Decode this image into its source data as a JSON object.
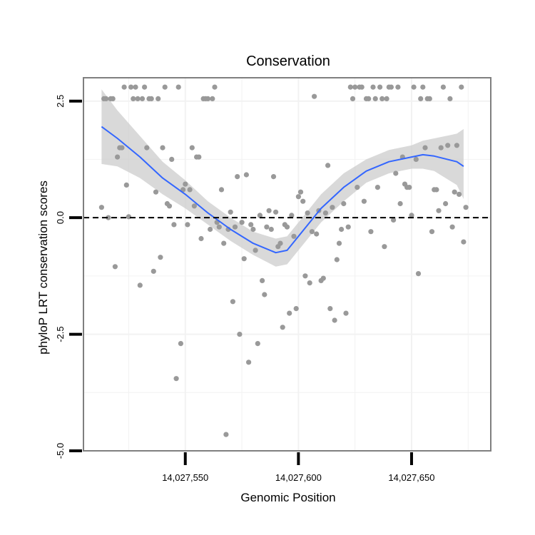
{
  "chart_data": {
    "type": "scatter",
    "title": "Conservation",
    "xlabel": "Genomic Position",
    "ylabel": "phyloP LRT conservation scores",
    "xlim": [
      14027505,
      14027685
    ],
    "ylim": [
      -5.0,
      3.0
    ],
    "x_ticks": [
      {
        "value": 14027550,
        "label": "14,027,550"
      },
      {
        "value": 14027600,
        "label": "14,027,600"
      },
      {
        "value": 14027650,
        "label": "14,027,650"
      }
    ],
    "y_ticks": [
      {
        "value": -5.0,
        "label": "-5.0"
      },
      {
        "value": -2.5,
        "label": "-2.5"
      },
      {
        "value": 0.0,
        "label": "0.0"
      },
      {
        "value": 2.5,
        "label": "2.5"
      }
    ],
    "grid": true,
    "reference_line": {
      "y": 0,
      "style": "dashed"
    },
    "colors": {
      "points": "#999999",
      "smooth": "#3366ff",
      "ribbon": "#cccccc",
      "panel_border": "#7f7f7f",
      "grid": "#f2f2f2"
    },
    "points": [
      {
        "x": 14027513,
        "y": 0.22
      },
      {
        "x": 14027514,
        "y": 2.55
      },
      {
        "x": 14027515,
        "y": 2.55
      },
      {
        "x": 14027516,
        "y": 0.0
      },
      {
        "x": 14027517,
        "y": 2.55
      },
      {
        "x": 14027518,
        "y": 2.55
      },
      {
        "x": 14027519,
        "y": -1.05
      },
      {
        "x": 14027520,
        "y": 1.3
      },
      {
        "x": 14027521,
        "y": 1.5
      },
      {
        "x": 14027522,
        "y": 1.5
      },
      {
        "x": 14027523,
        "y": 2.8
      },
      {
        "x": 14027524,
        "y": 0.7
      },
      {
        "x": 14027525,
        "y": 0.02
      },
      {
        "x": 14027526,
        "y": 2.8
      },
      {
        "x": 14027527,
        "y": 2.55
      },
      {
        "x": 14027528,
        "y": 2.8
      },
      {
        "x": 14027529,
        "y": 2.55
      },
      {
        "x": 14027530,
        "y": -1.45
      },
      {
        "x": 14027531,
        "y": 2.55
      },
      {
        "x": 14027532,
        "y": 2.8
      },
      {
        "x": 14027533,
        "y": 1.5
      },
      {
        "x": 14027534,
        "y": 2.55
      },
      {
        "x": 14027535,
        "y": 2.55
      },
      {
        "x": 14027536,
        "y": -1.15
      },
      {
        "x": 14027537,
        "y": 0.55
      },
      {
        "x": 14027538,
        "y": 2.55
      },
      {
        "x": 14027539,
        "y": -0.85
      },
      {
        "x": 14027540,
        "y": 1.5
      },
      {
        "x": 14027541,
        "y": 2.8
      },
      {
        "x": 14027542,
        "y": 0.3
      },
      {
        "x": 14027543,
        "y": 0.25
      },
      {
        "x": 14027544,
        "y": 1.25
      },
      {
        "x": 14027545,
        "y": -0.15
      },
      {
        "x": 14027546,
        "y": -3.45
      },
      {
        "x": 14027547,
        "y": 2.8
      },
      {
        "x": 14027548,
        "y": -2.7
      },
      {
        "x": 14027549,
        "y": 0.6
      },
      {
        "x": 14027550,
        "y": 0.72
      },
      {
        "x": 14027551,
        "y": -0.15
      },
      {
        "x": 14027552,
        "y": 0.6
      },
      {
        "x": 14027553,
        "y": 1.5
      },
      {
        "x": 14027554,
        "y": 0.25
      },
      {
        "x": 14027555,
        "y": 1.3
      },
      {
        "x": 14027556,
        "y": 1.3
      },
      {
        "x": 14027557,
        "y": -0.45
      },
      {
        "x": 14027558,
        "y": 2.55
      },
      {
        "x": 14027559,
        "y": 2.55
      },
      {
        "x": 14027560,
        "y": 2.55
      },
      {
        "x": 14027561,
        "y": -0.25
      },
      {
        "x": 14027562,
        "y": 2.55
      },
      {
        "x": 14027563,
        "y": 2.8
      },
      {
        "x": 14027564,
        "y": -0.1
      },
      {
        "x": 14027565,
        "y": -0.2
      },
      {
        "x": 14027566,
        "y": 0.6
      },
      {
        "x": 14027567,
        "y": -0.55
      },
      {
        "x": 14027568,
        "y": -4.65
      },
      {
        "x": 14027569,
        "y": -0.25
      },
      {
        "x": 14027570,
        "y": 0.12
      },
      {
        "x": 14027571,
        "y": -1.8
      },
      {
        "x": 14027572,
        "y": -0.2
      },
      {
        "x": 14027573,
        "y": 0.88
      },
      {
        "x": 14027574,
        "y": -2.5
      },
      {
        "x": 14027575,
        "y": -0.1
      },
      {
        "x": 14027576,
        "y": -0.88
      },
      {
        "x": 14027577,
        "y": 0.92
      },
      {
        "x": 14027578,
        "y": -3.1
      },
      {
        "x": 14027579,
        "y": -0.15
      },
      {
        "x": 14027580,
        "y": -0.25
      },
      {
        "x": 14027581,
        "y": -0.7
      },
      {
        "x": 14027582,
        "y": -2.7
      },
      {
        "x": 14027583,
        "y": 0.05
      },
      {
        "x": 14027584,
        "y": -1.35
      },
      {
        "x": 14027585,
        "y": -1.65
      },
      {
        "x": 14027586,
        "y": -0.2
      },
      {
        "x": 14027587,
        "y": 0.15
      },
      {
        "x": 14027588,
        "y": -0.25
      },
      {
        "x": 14027589,
        "y": 0.88
      },
      {
        "x": 14027590,
        "y": 0.12
      },
      {
        "x": 14027591,
        "y": -0.62
      },
      {
        "x": 14027592,
        "y": -0.55
      },
      {
        "x": 14027593,
        "y": -2.35
      },
      {
        "x": 14027594,
        "y": -0.15
      },
      {
        "x": 14027595,
        "y": -0.2
      },
      {
        "x": 14027596,
        "y": -2.05
      },
      {
        "x": 14027597,
        "y": 0.05
      },
      {
        "x": 14027598,
        "y": -0.4
      },
      {
        "x": 14027599,
        "y": -1.95
      },
      {
        "x": 14027600,
        "y": 0.45
      },
      {
        "x": 14027601,
        "y": 0.55
      },
      {
        "x": 14027602,
        "y": 0.35
      },
      {
        "x": 14027603,
        "y": -1.25
      },
      {
        "x": 14027604,
        "y": 0.1
      },
      {
        "x": 14027605,
        "y": -1.4
      },
      {
        "x": 14027606,
        "y": -0.3
      },
      {
        "x": 14027607,
        "y": 2.6
      },
      {
        "x": 14027608,
        "y": -0.35
      },
      {
        "x": 14027609,
        "y": 0.15
      },
      {
        "x": 14027610,
        "y": -1.35
      },
      {
        "x": 14027611,
        "y": -1.3
      },
      {
        "x": 14027612,
        "y": 0.1
      },
      {
        "x": 14027613,
        "y": 1.12
      },
      {
        "x": 14027614,
        "y": -1.95
      },
      {
        "x": 14027615,
        "y": 0.22
      },
      {
        "x": 14027616,
        "y": -2.2
      },
      {
        "x": 14027617,
        "y": -0.9
      },
      {
        "x": 14027618,
        "y": -0.55
      },
      {
        "x": 14027619,
        "y": -0.25
      },
      {
        "x": 14027620,
        "y": 0.3
      },
      {
        "x": 14027621,
        "y": -2.05
      },
      {
        "x": 14027622,
        "y": -0.2
      },
      {
        "x": 14027623,
        "y": 2.8
      },
      {
        "x": 14027624,
        "y": 2.55
      },
      {
        "x": 14027625,
        "y": 2.8
      },
      {
        "x": 14027626,
        "y": 0.65
      },
      {
        "x": 14027627,
        "y": 2.8
      },
      {
        "x": 14027628,
        "y": 2.8
      },
      {
        "x": 14027629,
        "y": 0.35
      },
      {
        "x": 14027630,
        "y": 2.55
      },
      {
        "x": 14027631,
        "y": 2.55
      },
      {
        "x": 14027632,
        "y": -0.3
      },
      {
        "x": 14027633,
        "y": 2.8
      },
      {
        "x": 14027634,
        "y": 2.55
      },
      {
        "x": 14027635,
        "y": 0.65
      },
      {
        "x": 14027636,
        "y": 2.8
      },
      {
        "x": 14027637,
        "y": 2.55
      },
      {
        "x": 14027638,
        "y": -0.62
      },
      {
        "x": 14027639,
        "y": 2.55
      },
      {
        "x": 14027640,
        "y": 2.8
      },
      {
        "x": 14027641,
        "y": 2.8
      },
      {
        "x": 14027642,
        "y": -0.05
      },
      {
        "x": 14027643,
        "y": 0.95
      },
      {
        "x": 14027644,
        "y": 2.8
      },
      {
        "x": 14027645,
        "y": 0.3
      },
      {
        "x": 14027646,
        "y": 1.3
      },
      {
        "x": 14027647,
        "y": 0.72
      },
      {
        "x": 14027648,
        "y": 0.65
      },
      {
        "x": 14027649,
        "y": 0.65
      },
      {
        "x": 14027650,
        "y": 0.05
      },
      {
        "x": 14027651,
        "y": 2.8
      },
      {
        "x": 14027652,
        "y": 1.25
      },
      {
        "x": 14027653,
        "y": -1.2
      },
      {
        "x": 14027654,
        "y": 2.55
      },
      {
        "x": 14027655,
        "y": 2.8
      },
      {
        "x": 14027656,
        "y": 1.5
      },
      {
        "x": 14027657,
        "y": 2.55
      },
      {
        "x": 14027658,
        "y": 2.55
      },
      {
        "x": 14027659,
        "y": -0.3
      },
      {
        "x": 14027660,
        "y": 0.6
      },
      {
        "x": 14027661,
        "y": 0.6
      },
      {
        "x": 14027662,
        "y": 0.15
      },
      {
        "x": 14027663,
        "y": 1.5
      },
      {
        "x": 14027664,
        "y": 2.8
      },
      {
        "x": 14027665,
        "y": 0.3
      },
      {
        "x": 14027666,
        "y": 1.55
      },
      {
        "x": 14027667,
        "y": 2.55
      },
      {
        "x": 14027668,
        "y": -0.2
      },
      {
        "x": 14027669,
        "y": 0.55
      },
      {
        "x": 14027670,
        "y": 1.55
      },
      {
        "x": 14027671,
        "y": 0.5
      },
      {
        "x": 14027672,
        "y": 2.8
      },
      {
        "x": 14027673,
        "y": -0.52
      },
      {
        "x": 14027674,
        "y": 0.22
      }
    ],
    "smooth": {
      "x": [
        14027513,
        14027520,
        14027530,
        14027540,
        14027550,
        14027560,
        14027570,
        14027580,
        14027590,
        14027595,
        14027600,
        14027610,
        14027620,
        14027630,
        14027640,
        14027650,
        14027655,
        14027660,
        14027670,
        14027673
      ],
      "y": [
        1.95,
        1.7,
        1.3,
        0.85,
        0.5,
        0.1,
        -0.25,
        -0.55,
        -0.75,
        -0.7,
        -0.4,
        0.2,
        0.65,
        1.0,
        1.2,
        1.3,
        1.35,
        1.32,
        1.2,
        1.1
      ],
      "lower": [
        1.15,
        1.1,
        0.85,
        0.5,
        0.2,
        -0.15,
        -0.5,
        -0.8,
        -1.05,
        -1.0,
        -0.7,
        -0.1,
        0.35,
        0.75,
        0.95,
        1.05,
        1.05,
        1.0,
        0.7,
        0.4
      ],
      "upper": [
        2.75,
        2.3,
        1.75,
        1.2,
        0.8,
        0.35,
        0.0,
        -0.3,
        -0.45,
        -0.4,
        -0.1,
        0.5,
        0.95,
        1.25,
        1.45,
        1.55,
        1.65,
        1.7,
        1.8,
        1.9
      ]
    }
  }
}
